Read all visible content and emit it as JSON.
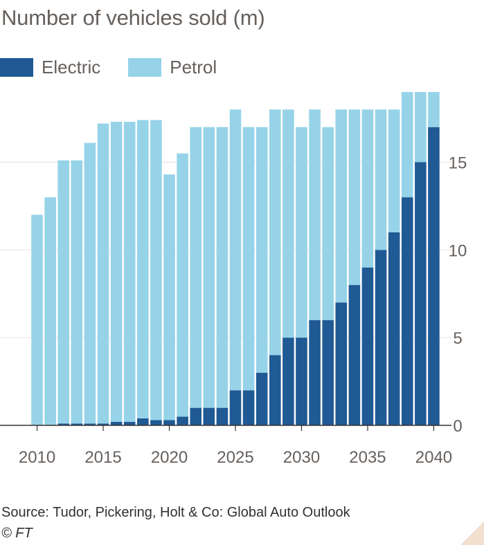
{
  "chart_data": {
    "type": "bar",
    "stacked": true,
    "title": "Number of vehicles sold (m)",
    "x": [
      2010,
      2011,
      2012,
      2013,
      2014,
      2015,
      2016,
      2017,
      2018,
      2019,
      2020,
      2021,
      2022,
      2023,
      2024,
      2025,
      2026,
      2027,
      2028,
      2029,
      2030,
      2031,
      2032,
      2033,
      2034,
      2035,
      2036,
      2037,
      2038,
      2039,
      2040
    ],
    "series": [
      {
        "name": "Electric",
        "color": "#1f5a94",
        "values": [
          0,
          0,
          0.1,
          0.1,
          0.1,
          0.1,
          0.2,
          0.2,
          0.4,
          0.3,
          0.3,
          0.5,
          1,
          1,
          1,
          2,
          2,
          3,
          4,
          5,
          5,
          6,
          6,
          7,
          8,
          9,
          10,
          11,
          13,
          15,
          17
        ]
      },
      {
        "name": "Petrol",
        "color": "#96d3e8",
        "values": [
          12,
          13,
          15,
          15,
          16,
          17.1,
          17.1,
          17.1,
          17,
          17.1,
          14,
          15,
          16,
          16,
          16,
          16,
          15,
          14,
          14,
          13,
          12,
          12,
          11,
          11,
          10,
          9,
          8,
          7,
          6,
          4,
          2
        ]
      }
    ],
    "xticks": [
      "2010",
      "2015",
      "2020",
      "2025",
      "2030",
      "2035",
      "2040"
    ],
    "yticks": [
      "0",
      "5",
      "10",
      "15"
    ],
    "ylim": [
      0,
      19
    ],
    "yaxis_position": "right",
    "grid": "horizontal",
    "legend_position": "top-left",
    "xlabel": "",
    "ylabel": ""
  },
  "source": "Source: Tudor, Pickering, Holt & Co: Global Auto Outlook",
  "credit": "© FT"
}
